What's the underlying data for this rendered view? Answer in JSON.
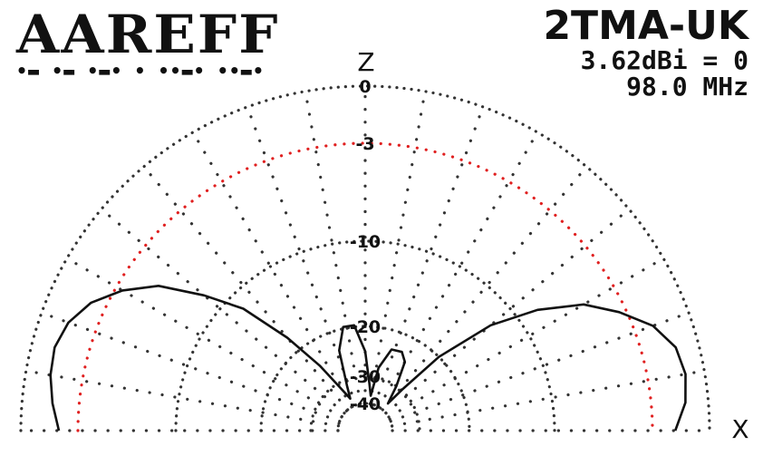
{
  "logo": {
    "text": "AAREFF",
    "morse": "•▬ •▬ •▬• • ••▬• ••▬•"
  },
  "header": {
    "model": "2TMA-UK",
    "gain": "3.62dBi = 0",
    "frequency": "98.0 MHz"
  },
  "chart_data": {
    "type": "polar",
    "plane": "elevation (ZX)",
    "axis_labels": {
      "vertical": "Z",
      "horizontal": "X"
    },
    "radial_unit": "dB",
    "rings": [
      0,
      -3,
      -10,
      -20,
      -30,
      -40
    ],
    "ring_labels": [
      "0",
      "-3",
      "-10",
      "-20",
      "-30",
      "-40"
    ],
    "highlight_ring": -3,
    "highlight_color": "#e02020",
    "grid_color": "#333333",
    "spoke_step_deg": 10,
    "reference_gain_dbi": 3.62,
    "series": [
      {
        "points": [
          {
            "angle_deg": 0,
            "db": -1.8
          },
          {
            "angle_deg": 5,
            "db": -1.2
          },
          {
            "angle_deg": 10,
            "db": -1.0
          },
          {
            "angle_deg": 15,
            "db": -1.2
          },
          {
            "angle_deg": 20,
            "db": -2.0
          },
          {
            "angle_deg": 25,
            "db": -3.5
          },
          {
            "angle_deg": 30,
            "db": -5.5
          },
          {
            "angle_deg": 35,
            "db": -8.5
          },
          {
            "angle_deg": 40,
            "db": -13.0
          },
          {
            "angle_deg": 45,
            "db": -20.0
          },
          {
            "angle_deg": 48,
            "db": -30.0
          },
          {
            "angle_deg": 50,
            "db": -37.0
          },
          {
            "angle_deg": 55,
            "db": -30.0
          },
          {
            "angle_deg": 60,
            "db": -25.0
          },
          {
            "angle_deg": 65,
            "db": -23.5
          },
          {
            "angle_deg": 72,
            "db": -23.8
          },
          {
            "angle_deg": 78,
            "db": -28.0
          },
          {
            "angle_deg": 81,
            "db": -37.0
          },
          {
            "angle_deg": 85,
            "db": -32.5
          },
          {
            "angle_deg": 90,
            "db": -25.0
          },
          {
            "angle_deg": 96,
            "db": -19.8
          },
          {
            "angle_deg": 102,
            "db": -19.8
          },
          {
            "angle_deg": 108,
            "db": -24.0
          },
          {
            "angle_deg": 112,
            "db": -32.0
          },
          {
            "angle_deg": 115,
            "db": -37.0
          },
          {
            "angle_deg": 120,
            "db": -32.0
          },
          {
            "angle_deg": 125,
            "db": -25.0
          },
          {
            "angle_deg": 130,
            "db": -18.0
          },
          {
            "angle_deg": 135,
            "db": -12.0
          },
          {
            "angle_deg": 140,
            "db": -8.5
          },
          {
            "angle_deg": 145,
            "db": -5.5
          },
          {
            "angle_deg": 150,
            "db": -3.5
          },
          {
            "angle_deg": 155,
            "db": -2.2
          },
          {
            "angle_deg": 160,
            "db": -1.5
          },
          {
            "angle_deg": 165,
            "db": -1.2
          },
          {
            "angle_deg": 170,
            "db": -1.3
          },
          {
            "angle_deg": 175,
            "db": -1.6
          },
          {
            "angle_deg": 180,
            "db": -2.0
          }
        ]
      }
    ]
  }
}
